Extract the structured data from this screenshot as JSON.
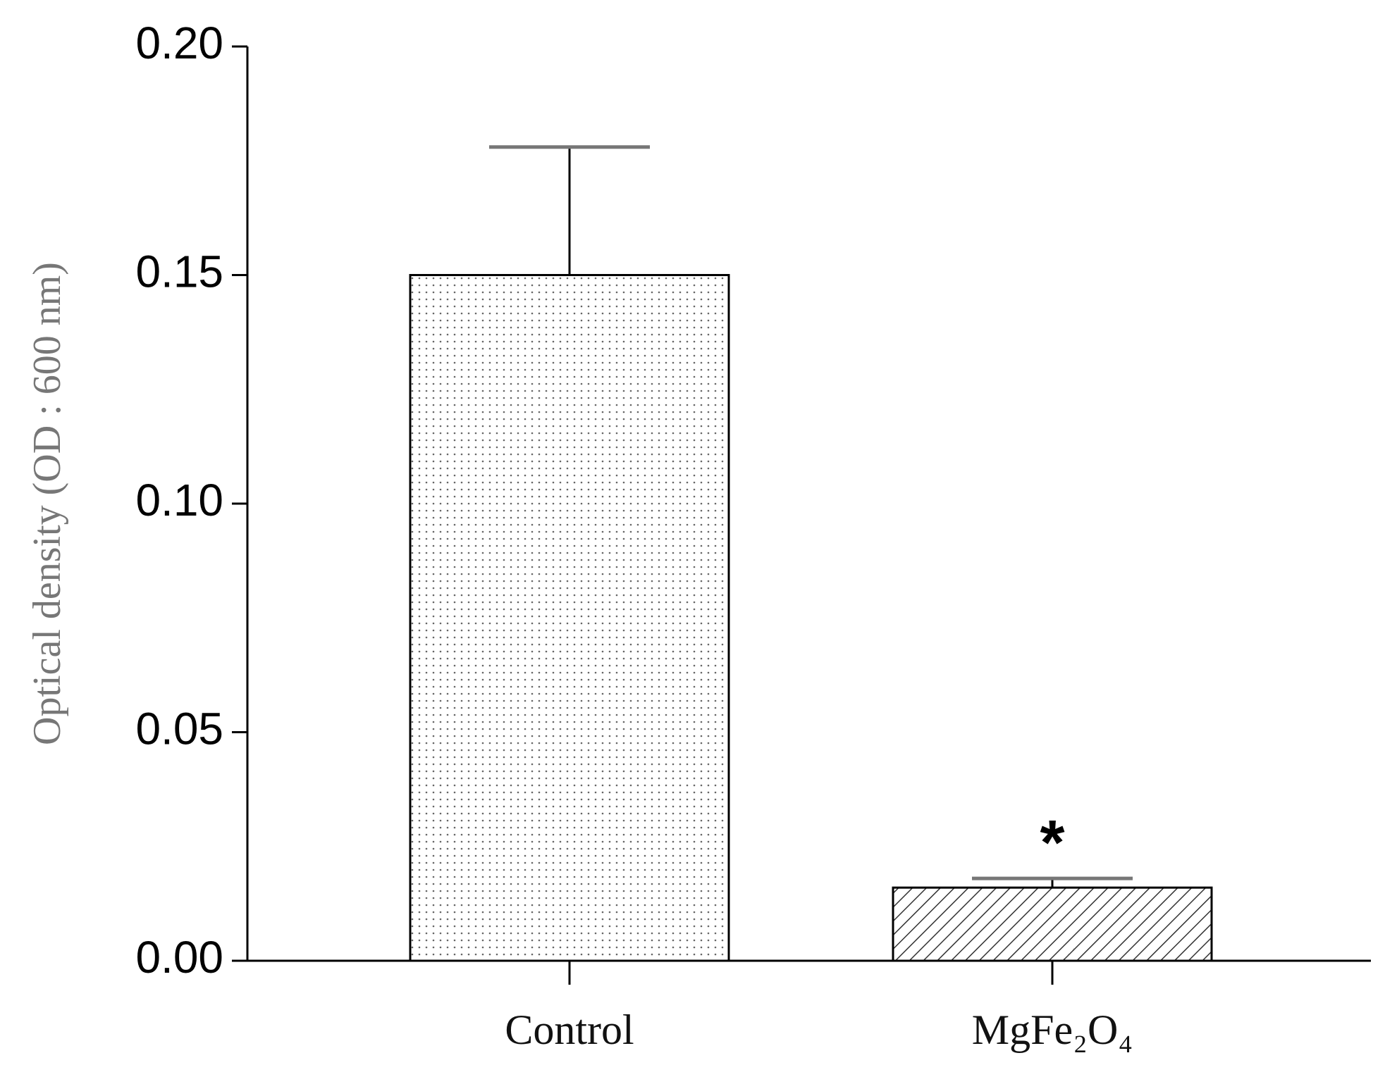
{
  "chart_data": {
    "type": "bar",
    "y_label": "Optical density (OD : 600 nm)",
    "categories": [
      "Control",
      "MgFe₂O₄"
    ],
    "values": [
      0.15,
      0.016
    ],
    "errors": [
      0.028,
      0.002
    ],
    "annotation": "*",
    "ylim": [
      0,
      0.2
    ],
    "yticks": [
      {
        "value": 0,
        "label": "0.00"
      },
      {
        "value": 0.05,
        "label": "0.05"
      },
      {
        "value": 0.1,
        "label": "0.10"
      },
      {
        "value": 0.15,
        "label": "0.15"
      },
      {
        "value": 0.2,
        "label": "0.20"
      }
    ],
    "grid": false
  }
}
